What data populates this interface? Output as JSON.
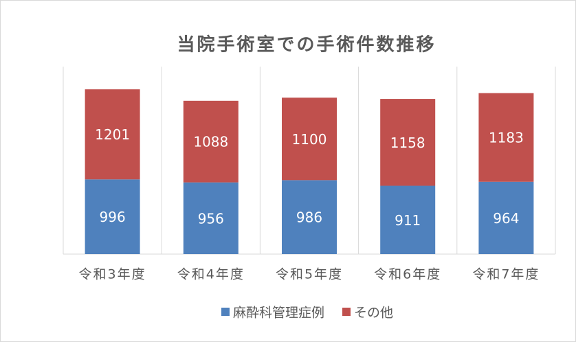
{
  "chart_data": {
    "type": "stacked_bar",
    "title": "当院手術室での手術件数推移",
    "categories": [
      "令和3年度",
      "令和4年度",
      "令和5年度",
      "令和6年度",
      "令和7年度"
    ],
    "series": [
      {
        "name": "麻酔科管理症例",
        "color": "#4f81bd",
        "values": [
          996,
          956,
          986,
          911,
          964
        ]
      },
      {
        "name": "その他",
        "color": "#c0504d",
        "values": [
          1201,
          1088,
          1100,
          1158,
          1183
        ]
      }
    ],
    "ylim": [
      0,
      2500
    ],
    "legend": "bottom"
  }
}
